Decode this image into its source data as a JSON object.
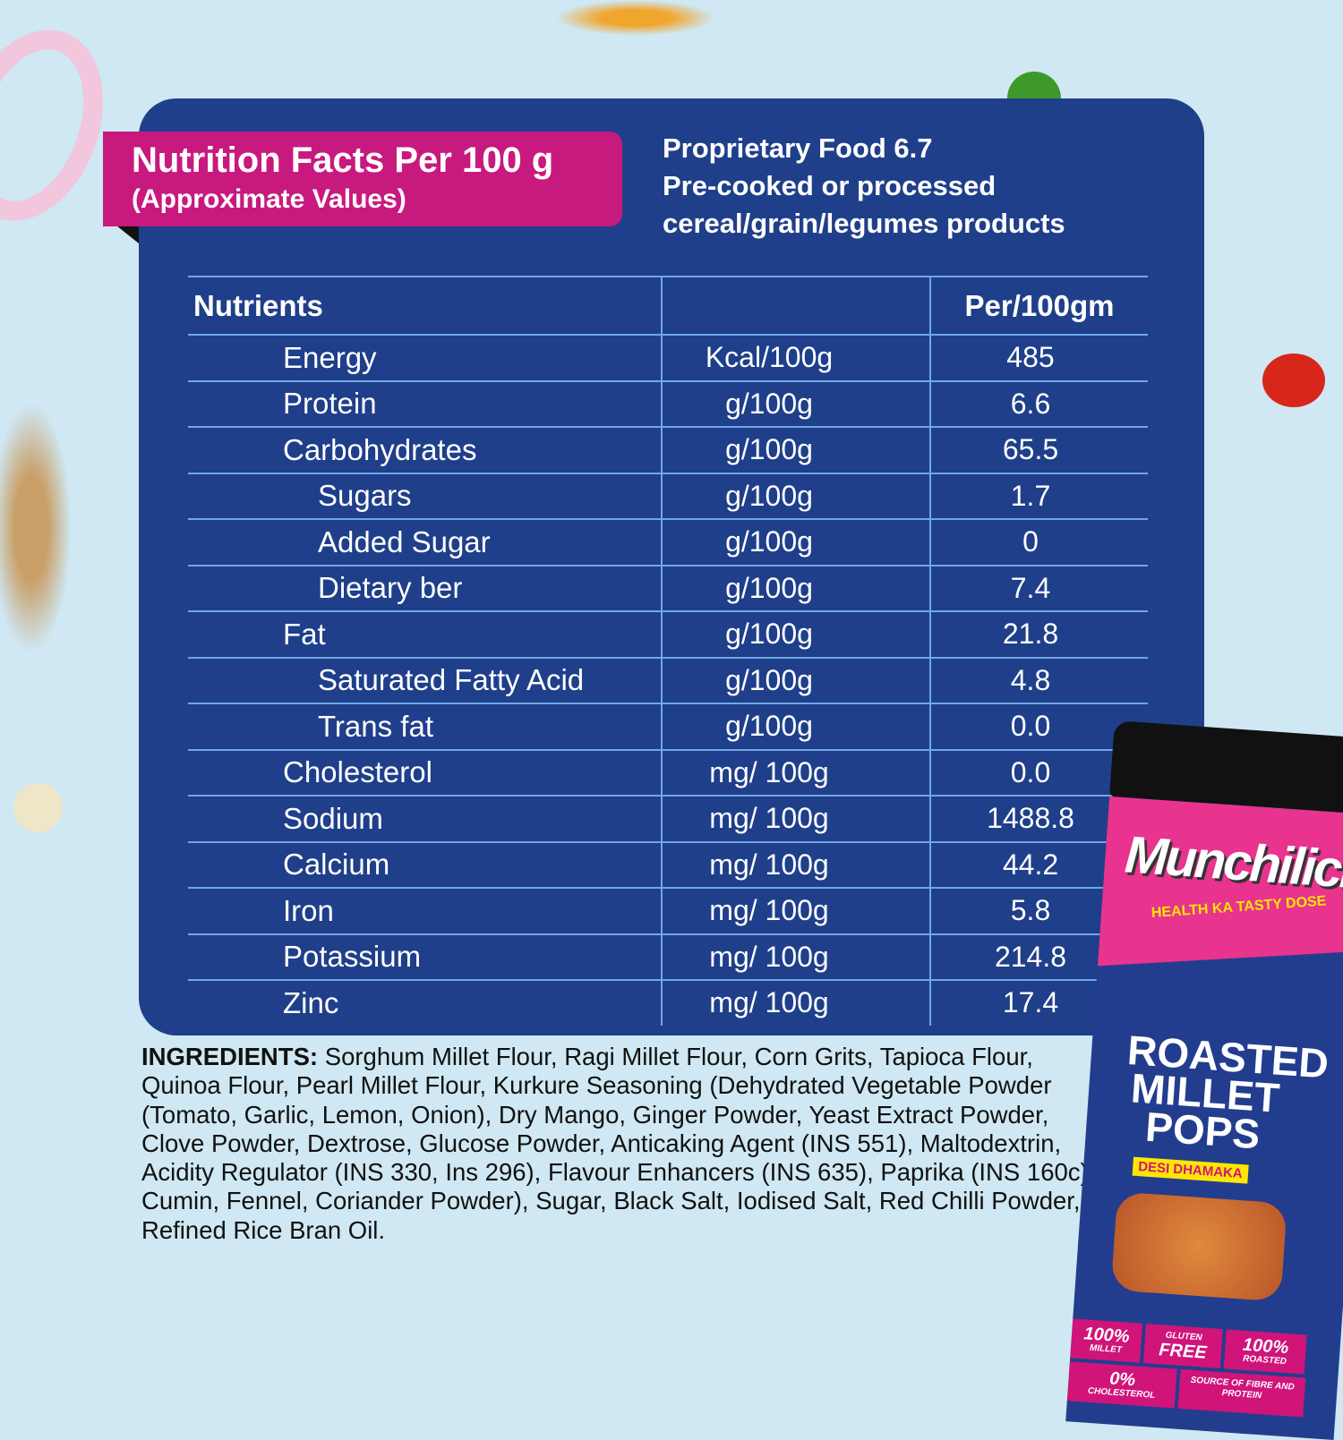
{
  "header": {
    "title": "Nutrition Facts Per 100 g",
    "subtitle": "(Approximate Values)",
    "category_lines": [
      "Proprietary Food 6.7",
      "Pre-cooked or processed",
      "cereal/grain/legumes products"
    ]
  },
  "table": {
    "headers": [
      "Nutrients",
      "",
      "Per/100gm"
    ],
    "rows": [
      {
        "nutrient": "Energy",
        "unit": "Kcal/100g",
        "value": "485",
        "sub": false
      },
      {
        "nutrient": "Protein",
        "unit": "g/100g",
        "value": "6.6",
        "sub": false
      },
      {
        "nutrient": "Carbohydrates",
        "unit": "g/100g",
        "value": "65.5",
        "sub": false
      },
      {
        "nutrient": "Sugars",
        "unit": "g/100g",
        "value": "1.7",
        "sub": true
      },
      {
        "nutrient": "Added Sugar",
        "unit": "g/100g",
        "value": "0",
        "sub": true
      },
      {
        "nutrient": "Dietary ber",
        "unit": "g/100g",
        "value": "7.4",
        "sub": true
      },
      {
        "nutrient": "Fat",
        "unit": "g/100g",
        "value": "21.8",
        "sub": false
      },
      {
        "nutrient": "Saturated Fatty Acid",
        "unit": "g/100g",
        "value": "4.8",
        "sub": true
      },
      {
        "nutrient": "Trans fat",
        "unit": "g/100g",
        "value": "0.0",
        "sub": true
      },
      {
        "nutrient": "Cholesterol",
        "unit": "mg/ 100g",
        "value": "0.0",
        "sub": false
      },
      {
        "nutrient": "Sodium",
        "unit": "mg/ 100g",
        "value": "1488.8",
        "sub": false
      },
      {
        "nutrient": "Calcium",
        "unit": "mg/ 100g",
        "value": "44.2",
        "sub": false
      },
      {
        "nutrient": "Iron",
        "unit": "mg/ 100g",
        "value": "5.8",
        "sub": false
      },
      {
        "nutrient": "Potassium",
        "unit": "mg/ 100g",
        "value": "214.8",
        "sub": false
      },
      {
        "nutrient": "Zinc",
        "unit": "mg/ 100g",
        "value": "17.4",
        "sub": false
      }
    ]
  },
  "ingredients": {
    "label": "INGREDIENTS:",
    "text": " Sorghum Millet Flour, Ragi Millet Flour, Corn Grits, Tapioca Flour, Quinoa Flour, Pearl Millet Flour, Kurkure Seasoning (Dehydrated Vegetable Powder (Tomato, Garlic, Lemon, Onion), Dry Mango, Ginger Powder, Yeast Extract Powder, Clove Powder, Dextrose, Glucose Powder, Anticaking Agent (INS 551), Maltodextrin, Acidity Regulator (INS 330, Ins 296), Flavour Enhancers (INS 635), Paprika (INS 160c), Cumin, Fennel, Coriander Powder),  Sugar, Black Salt, Iodised Salt, Red Chilli Powder, Refined Rice Bran Oil."
  },
  "package": {
    "brand": "Munchilicious",
    "tagline": "HEALTH KA TASTY DOSE",
    "product": [
      "ROASTED",
      "MILLET",
      "POPS"
    ],
    "flavor": "DESI DHAMAKA",
    "claims": [
      {
        "big": "100%",
        "small": "MILLET"
      },
      {
        "big": "FREE",
        "small": "GLUTEN"
      },
      {
        "big": "100%",
        "small": "ROASTED"
      },
      {
        "big": "0%",
        "small": "CHOLESTEROL"
      },
      {
        "big": "",
        "small": "SOURCE OF FIBRE AND PROTEIN"
      }
    ]
  },
  "colors": {
    "background": "#cfe8f3",
    "panel": "#1f3f8a",
    "badge": "#c8197f",
    "divider": "#6fa8e6"
  }
}
